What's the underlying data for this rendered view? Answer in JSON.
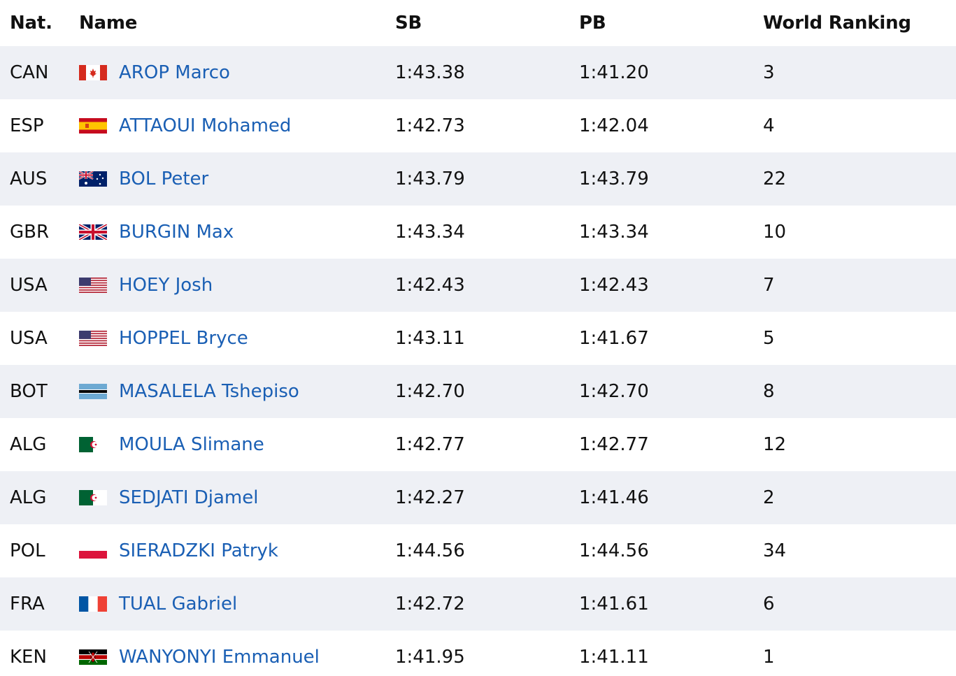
{
  "headers": {
    "nat": "Nat.",
    "name": "Name",
    "sb": "SB",
    "pb": "PB",
    "world_ranking": "World Ranking"
  },
  "colors": {
    "link": "#1a5fb4",
    "row_shade": "#eef0f5"
  },
  "rows": [
    {
      "nat": "CAN",
      "flag": "canada-flag-icon",
      "name": "AROP Marco",
      "sb": "1:43.38",
      "pb": "1:41.20",
      "rank": "3"
    },
    {
      "nat": "ESP",
      "flag": "spain-flag-icon",
      "name": "ATTAOUI Mohamed",
      "sb": "1:42.73",
      "pb": "1:42.04",
      "rank": "4"
    },
    {
      "nat": "AUS",
      "flag": "australia-flag-icon",
      "name": "BOL Peter",
      "sb": "1:43.79",
      "pb": "1:43.79",
      "rank": "22"
    },
    {
      "nat": "GBR",
      "flag": "uk-flag-icon",
      "name": "BURGIN Max",
      "sb": "1:43.34",
      "pb": "1:43.34",
      "rank": "10"
    },
    {
      "nat": "USA",
      "flag": "usa-flag-icon",
      "name": "HOEY Josh",
      "sb": "1:42.43",
      "pb": "1:42.43",
      "rank": "7"
    },
    {
      "nat": "USA",
      "flag": "usa-flag-icon",
      "name": "HOPPEL Bryce",
      "sb": "1:43.11",
      "pb": "1:41.67",
      "rank": "5"
    },
    {
      "nat": "BOT",
      "flag": "botswana-flag-icon",
      "name": "MASALELA Tshepiso",
      "sb": "1:42.70",
      "pb": "1:42.70",
      "rank": "8"
    },
    {
      "nat": "ALG",
      "flag": "algeria-flag-icon",
      "name": "MOULA Slimane",
      "sb": "1:42.77",
      "pb": "1:42.77",
      "rank": "12"
    },
    {
      "nat": "ALG",
      "flag": "algeria-flag-icon",
      "name": "SEDJATI Djamel",
      "sb": "1:42.27",
      "pb": "1:41.46",
      "rank": "2"
    },
    {
      "nat": "POL",
      "flag": "poland-flag-icon",
      "name": "SIERADZKI Patryk",
      "sb": "1:44.56",
      "pb": "1:44.56",
      "rank": "34"
    },
    {
      "nat": "FRA",
      "flag": "france-flag-icon",
      "name": "TUAL Gabriel",
      "sb": "1:42.72",
      "pb": "1:41.61",
      "rank": "6"
    },
    {
      "nat": "KEN",
      "flag": "kenya-flag-icon",
      "name": "WANYONYI Emmanuel",
      "sb": "1:41.95",
      "pb": "1:41.11",
      "rank": "1"
    }
  ]
}
